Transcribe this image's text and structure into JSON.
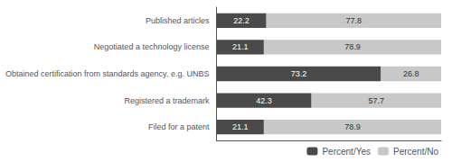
{
  "chart_data": {
    "type": "bar",
    "orientation": "horizontal",
    "stacked": true,
    "categories": [
      "Published articles",
      "Negotiated a technology license",
      "Obtained certification from standards agency, e.g. UNBS",
      "Registered a trademark",
      "Filed for a patent"
    ],
    "series": [
      {
        "name": "Percent/Yes",
        "color": "#4a4a4a",
        "values": [
          22.2,
          21.1,
          73.2,
          42.3,
          21.1
        ]
      },
      {
        "name": "Percent/No",
        "color": "#c8c8c8",
        "values": [
          77.8,
          78.9,
          26.8,
          57.7,
          78.9
        ]
      }
    ],
    "xlim": [
      0,
      100
    ],
    "tick_labels": "y",
    "data_labels": true,
    "grid": false,
    "legend": "lower right"
  }
}
